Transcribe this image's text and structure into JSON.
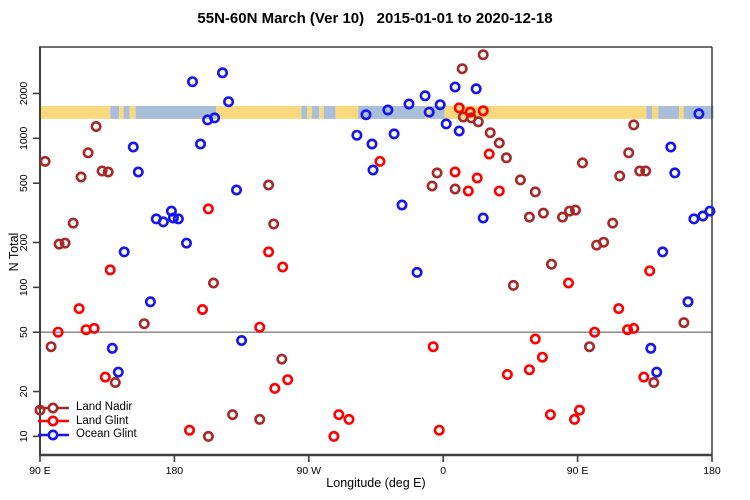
{
  "title": "55N-60N March (Ver 10)   2015-01-01 to 2020-12-18",
  "chart_data": {
    "type": "scatter",
    "title": "55N-60N March (Ver 10)   2015-01-01 to 2020-12-18",
    "xlabel": "Longitude (deg E)",
    "ylabel": "N Total",
    "x_axis": {
      "note": "longitude axis spans 450 degrees starting at 90E going east; positions below are degrees from left edge",
      "range_deg": [
        0,
        450
      ],
      "ticks_deg": [
        0,
        90,
        180,
        270,
        360,
        450
      ],
      "tick_labels": [
        "90 E",
        "180",
        "90 W",
        "0",
        "90 E",
        "180"
      ]
    },
    "y_axis": {
      "scale": "log",
      "range": [
        7.5,
        4100
      ],
      "ticks": [
        10,
        20,
        50,
        100,
        200,
        500,
        1000,
        2000
      ],
      "tick_labels": [
        "10",
        "20",
        "50",
        "100",
        "200",
        "500",
        "1000",
        "2000"
      ]
    },
    "reference_line_y": 50,
    "grid": "off",
    "legend_position": "bottom-left",
    "map_band": {
      "description": "land/ocean strip for 55N-60N drawn across the plot",
      "value_top": 1650,
      "value_bottom": 1350,
      "land_color": "#FAD87E",
      "ocean_color": "#A9BFD9",
      "segments": [
        [
          0,
          47,
          "land"
        ],
        [
          47,
          53,
          "ocean"
        ],
        [
          53,
          56,
          "land"
        ],
        [
          56,
          60,
          "ocean"
        ],
        [
          60,
          64,
          "land"
        ],
        [
          64,
          118,
          "ocean"
        ],
        [
          118,
          175,
          "land"
        ],
        [
          175,
          179,
          "ocean"
        ],
        [
          179,
          182,
          "land"
        ],
        [
          182,
          187,
          "ocean"
        ],
        [
          187,
          190,
          "land"
        ],
        [
          190,
          198,
          "ocean"
        ],
        [
          198,
          213,
          "land"
        ],
        [
          213,
          258,
          "ocean"
        ],
        [
          258,
          261,
          "land"
        ],
        [
          261,
          271,
          "ocean"
        ],
        [
          271,
          406,
          "land"
        ],
        [
          406,
          410,
          "ocean"
        ],
        [
          410,
          414,
          "land"
        ],
        [
          414,
          428,
          "ocean"
        ],
        [
          428,
          431,
          "land"
        ],
        [
          431,
          451,
          "ocean"
        ]
      ]
    },
    "series": [
      {
        "name": "Land Nadir",
        "color": "#A52A2A",
        "points": [
          [
            37.6,
            1200
          ],
          [
            3.4,
            700
          ],
          [
            32.2,
            800
          ],
          [
            27.5,
            550
          ],
          [
            41.6,
            604
          ],
          [
            45.7,
            594
          ],
          [
            153.1,
            486
          ],
          [
            296.8,
            3640
          ],
          [
            282.7,
            2930
          ],
          [
            283.4,
            1390
          ],
          [
            288.8,
            1370
          ],
          [
            293.5,
            1290
          ],
          [
            301.5,
            1090
          ],
          [
            307.6,
            930
          ],
          [
            312.3,
            740
          ],
          [
            321.7,
            526
          ],
          [
            331.7,
            437
          ],
          [
            363.3,
            684
          ],
          [
            388.2,
            559
          ],
          [
            394.2,
            800
          ],
          [
            397.6,
            1230
          ],
          [
            401.6,
            604
          ],
          [
            405.6,
            604
          ],
          [
            265.9,
            586
          ],
          [
            262.6,
            479
          ],
          [
            278.0,
            457
          ],
          [
            22.2,
            270
          ],
          [
            12.8,
            195
          ],
          [
            16.8,
            198
          ],
          [
            116.2,
            107
          ],
          [
            156.5,
            266
          ],
          [
            69.8,
            57
          ],
          [
            327.7,
            296
          ],
          [
            337.1,
            315
          ],
          [
            349.9,
            296
          ],
          [
            354.6,
            325
          ],
          [
            358.6,
            330
          ],
          [
            383.5,
            270
          ],
          [
            372.7,
            192
          ],
          [
            377.4,
            201
          ],
          [
            342.5,
            143
          ],
          [
            317.0,
            103
          ],
          [
            431.2,
            58
          ],
          [
            7.4,
            40
          ],
          [
            50.4,
            23
          ],
          [
            161.9,
            33
          ],
          [
            129.0,
            14
          ],
          [
            147.1,
            13
          ],
          [
            112.8,
            10
          ],
          [
            368.0,
            40
          ],
          [
            411.0,
            23
          ],
          [
            0,
            15
          ]
        ]
      },
      {
        "name": "Land Glint",
        "color": "#FF0000",
        "points": [
          [
            280.7,
            1600
          ],
          [
            288.1,
            1500
          ],
          [
            296.8,
            1530
          ],
          [
            300.8,
            785
          ],
          [
            278.0,
            594
          ],
          [
            292.8,
            542
          ],
          [
            286.8,
            443
          ],
          [
            307.6,
            443
          ],
          [
            112.8,
            336
          ],
          [
            47.0,
            131
          ],
          [
            153.1,
            173
          ],
          [
            162.5,
            137
          ],
          [
            26.2,
            72
          ],
          [
            108.8,
            71
          ],
          [
            147.1,
            54
          ],
          [
            30.9,
            52
          ],
          [
            36.3,
            53
          ],
          [
            12.1,
            50
          ],
          [
            408.3,
            129
          ],
          [
            353.9,
            107
          ],
          [
            387.5,
            72
          ],
          [
            393.5,
            52
          ],
          [
            397.6,
            53
          ],
          [
            371.4,
            50
          ],
          [
            43.7,
            25
          ],
          [
            165.9,
            24
          ],
          [
            157.2,
            21
          ],
          [
            100.1,
            11
          ],
          [
            196.8,
            10
          ],
          [
            200.1,
            14
          ],
          [
            206.9,
            13
          ],
          [
            263.3,
            40
          ],
          [
            331.7,
            45
          ],
          [
            336.4,
            34
          ],
          [
            327.7,
            28
          ],
          [
            313.0,
            26
          ],
          [
            404.3,
            25
          ],
          [
            341.8,
            14
          ],
          [
            361.3,
            15
          ],
          [
            357.9,
            13
          ],
          [
            267.3,
            11
          ],
          [
            227.7,
            700
          ]
        ]
      },
      {
        "name": "Ocean Glint",
        "color": "#1515F0",
        "points": [
          [
            102.1,
            2400
          ],
          [
            122.2,
            2750
          ],
          [
            126.3,
            1760
          ],
          [
            112.2,
            1330
          ],
          [
            116.9,
            1370
          ],
          [
            218.3,
            1440
          ],
          [
            212.2,
            1050
          ],
          [
            222.3,
            916
          ],
          [
            62.5,
            875
          ],
          [
            65.8,
            594
          ],
          [
            107.5,
            916
          ],
          [
            131.6,
            450
          ],
          [
            233.0,
            1550
          ],
          [
            237.1,
            1070
          ],
          [
            247.1,
            1700
          ],
          [
            257.9,
            1930
          ],
          [
            260.6,
            1500
          ],
          [
            268.0,
            1680
          ],
          [
            272.0,
            1250
          ],
          [
            278.0,
            2210
          ],
          [
            280.7,
            1120
          ],
          [
            292.1,
            2150
          ],
          [
            422.4,
            875
          ],
          [
            425.1,
            586
          ],
          [
            441.2,
            1460
          ],
          [
            77.9,
            288
          ],
          [
            82.6,
            275
          ],
          [
            88.0,
            325
          ],
          [
            89.3,
            292
          ],
          [
            92.7,
            288
          ],
          [
            98.1,
            198
          ],
          [
            56.4,
            173
          ],
          [
            73.9,
            80
          ],
          [
            242.4,
            357
          ],
          [
            296.8,
            292
          ],
          [
            437.9,
            288
          ],
          [
            443.9,
            301
          ],
          [
            448.6,
            325
          ],
          [
            417.0,
            173
          ],
          [
            252.5,
            126
          ],
          [
            433.9,
            80
          ],
          [
            48.4,
            39
          ],
          [
            52.4,
            27
          ],
          [
            135.0,
            44
          ],
          [
            409.0,
            39
          ],
          [
            413.0,
            27
          ],
          [
            223.0,
            613
          ]
        ]
      }
    ]
  },
  "legend": {
    "items": [
      "Land Nadir",
      "Land Glint",
      "Ocean Glint"
    ]
  },
  "colors": {
    "axis": "#3F3F3F",
    "reference_line": "#7F7F7F",
    "text": "#000000"
  }
}
